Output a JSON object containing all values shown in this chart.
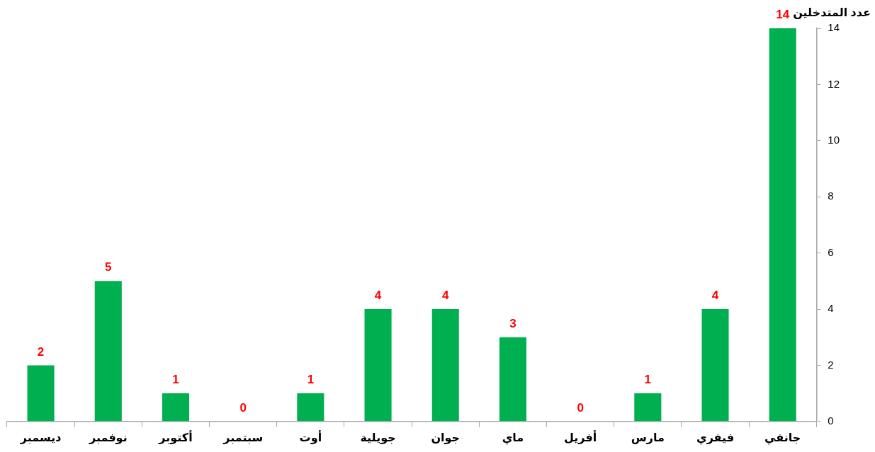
{
  "chart_data": {
    "type": "bar",
    "ylabel": "عدد المتدخلين",
    "categories": [
      "ديسمبر",
      "نوفمبر",
      "أكتوبر",
      "سبتمبر",
      "أوت",
      "جويلية",
      "جوان",
      "ماي",
      "أفريل",
      "مارس",
      "فيفري",
      "جانفي"
    ],
    "values": [
      2,
      5,
      1,
      0,
      1,
      4,
      4,
      3,
      0,
      1,
      4,
      14
    ],
    "color": "#00b050",
    "ylim": [
      0,
      14
    ],
    "yticks": [
      0,
      2,
      4,
      6,
      8,
      10,
      12,
      14
    ],
    "data_labels": true,
    "legend": false,
    "grid": false
  }
}
